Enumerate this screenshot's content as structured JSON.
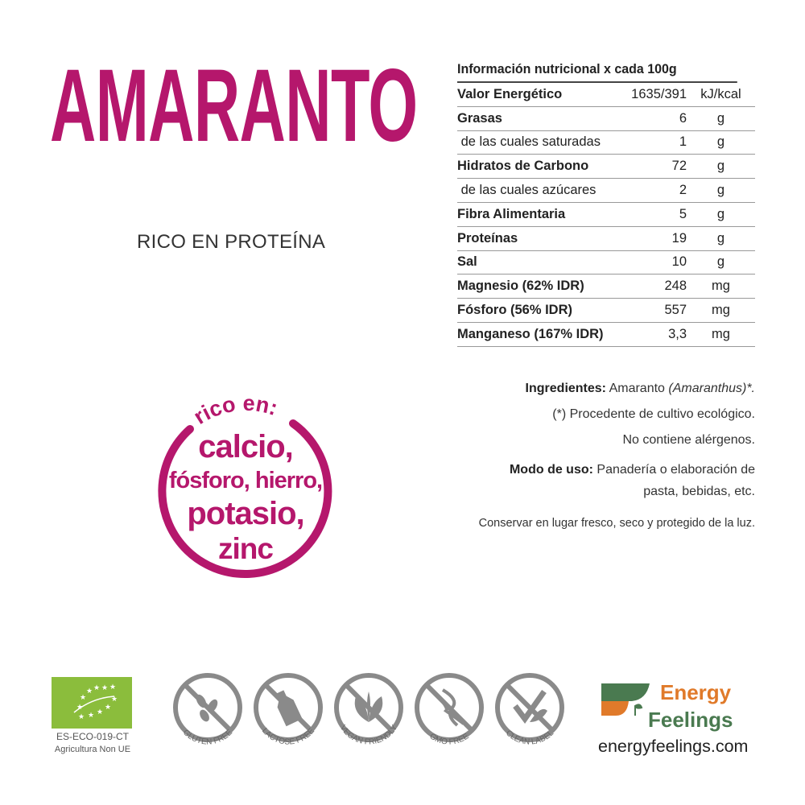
{
  "product": {
    "title": "AMARANTO",
    "subtitle": "RICO EN PROTEÍNA",
    "accent": "#b5176c"
  },
  "badge": {
    "heading": "rico en:",
    "lines": [
      "calcio,",
      "fósforo, hierro,",
      "potasio,",
      "zinc"
    ]
  },
  "nutrition": {
    "title": "Información nutricional x cada 100g",
    "rows": [
      {
        "name": "Valor Energético",
        "value": "1635/391",
        "unit": "kJ/kcal",
        "bold": true
      },
      {
        "name": "Grasas",
        "value": "6",
        "unit": "g",
        "bold": true
      },
      {
        "name": " de las cuales saturadas",
        "value": "1",
        "unit": "g",
        "bold": false
      },
      {
        "name": "Hidratos de Carbono",
        "value": "72",
        "unit": "g",
        "bold": true
      },
      {
        "name": " de las cuales azúcares",
        "value": "2",
        "unit": "g",
        "bold": false
      },
      {
        "name": "Fibra Alimentaria",
        "value": "5",
        "unit": "g",
        "bold": true
      },
      {
        "name": "Proteínas",
        "value": "19",
        "unit": "g",
        "bold": true
      },
      {
        "name": "Sal",
        "value": "10",
        "unit": "g",
        "bold": true
      },
      {
        "name": "Magnesio (62% IDR)",
        "value": "248",
        "unit": "mg",
        "bold": true
      },
      {
        "name": "Fósforo (56% IDR)",
        "value": "557",
        "unit": "mg",
        "bold": true
      },
      {
        "name": "Manganeso (167% IDR)",
        "value": "3,3",
        "unit": "mg",
        "bold": true
      }
    ]
  },
  "info": {
    "ingredients_label": "Ingredientes:",
    "ingredients": "Amaranto",
    "ingredients_latin": "(Amaranthus)*.",
    "organic_note": "(*) Procedente de cultivo ecológico.",
    "allergens": "No contiene alérgenos.",
    "usage_label": "Modo de uso:",
    "usage_1": "Panadería o elaboración de",
    "usage_2": "pasta, bebidas, etc.",
    "storage": "Conservar en lugar fresco, seco y protegido de la luz."
  },
  "certifications": {
    "eu_code": "ES-ECO-019-CT",
    "eu_origin": "Agricultura Non UE",
    "eu_color": "#8bbd3c",
    "icons": [
      {
        "icon": "wheat-icon",
        "label": "GLUTEN FREE"
      },
      {
        "icon": "bottle-icon",
        "label": "LACTOSE FREE"
      },
      {
        "icon": "leaf-icon",
        "label": "VEGAN FRIENDLY"
      },
      {
        "icon": "dna-icon",
        "label": "GMO FREE"
      },
      {
        "icon": "check-leaf-icon",
        "label": "CLEAN LABEL"
      }
    ]
  },
  "brand": {
    "line1": "Energy",
    "line2": "Feelings",
    "url": "energyfeelings.com",
    "orange": "#e07a2a",
    "green": "#4a7a50"
  }
}
